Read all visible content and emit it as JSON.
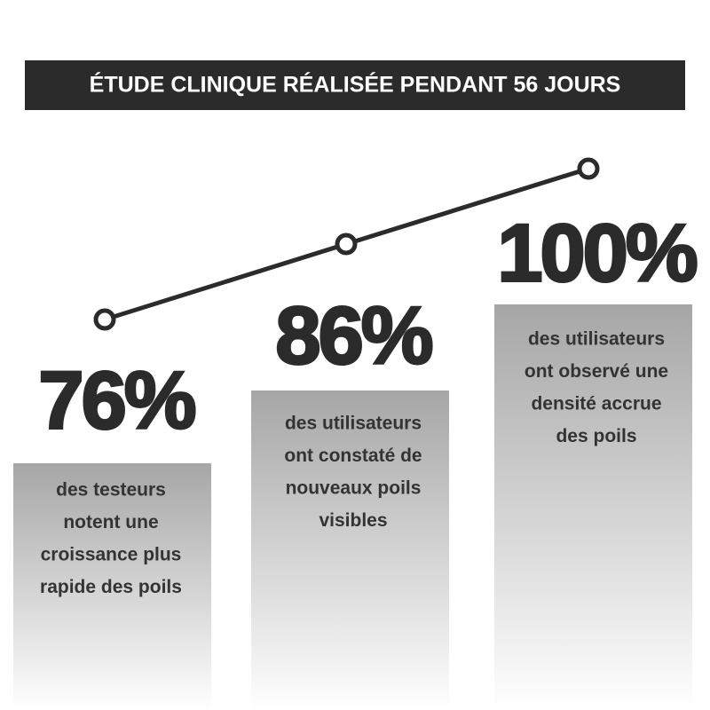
{
  "header": {
    "title": "ÉTUDE CLINIQUE RÉALISÉE PENDANT 56 JOURS"
  },
  "stats": [
    {
      "value": "76%",
      "lines": [
        "des testeurs",
        "notent une",
        "croissance plus",
        "rapide des poils"
      ]
    },
    {
      "value": "86%",
      "lines": [
        "des utilisateurs",
        "ont constaté de",
        "nouveaux poils",
        "visibles"
      ]
    },
    {
      "value": "100%",
      "lines": [
        "des utilisateurs",
        "ont observé une",
        "densité accrue",
        "des poils"
      ]
    }
  ]
}
